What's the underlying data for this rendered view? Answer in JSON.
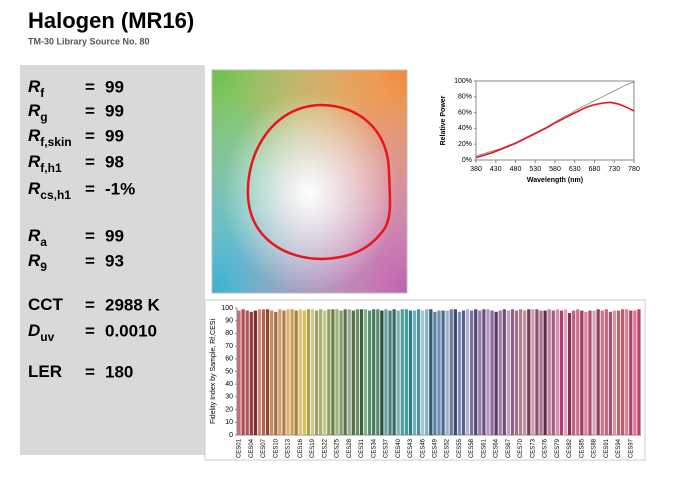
{
  "header": {
    "title": "Halogen (MR16)",
    "subtitle": "TM-30 Library Source No. 80"
  },
  "metrics": [
    {
      "symbol": "R",
      "subscript": "f",
      "sign": "=",
      "value": "99"
    },
    {
      "symbol": "R",
      "subscript": "g",
      "sign": "=",
      "value": "99"
    },
    {
      "symbol": "R",
      "subscript": "f,skin",
      "sign": "=",
      "value": "99"
    },
    {
      "symbol": "R",
      "subscript": "f,h1",
      "sign": "=",
      "value": "98"
    },
    {
      "symbol": "R",
      "subscript": "cs,h1",
      "sign": "=",
      "value": "-1%"
    },
    {
      "symbol": "R",
      "subscript": "a",
      "sign": "=",
      "value": "99"
    },
    {
      "symbol": "R",
      "subscript": "9",
      "sign": "=",
      "value": "93"
    },
    {
      "symbol": "CCT",
      "sign": "=",
      "value": "2988 K"
    },
    {
      "symbol": "D",
      "subscript": "uv",
      "sign": "=",
      "value": "0.0010"
    },
    {
      "symbol": "LER",
      "sign": "=",
      "value": "180"
    }
  ],
  "chart_data": [
    {
      "type": "bar",
      "y_label": "Fidelity Index by Sample, Rf,CESi",
      "categories": [
        "CES01",
        null,
        null,
        "CES04",
        null,
        null,
        "CES07",
        null,
        null,
        "CES10",
        null,
        null,
        "CES13",
        null,
        null,
        "CES16",
        null,
        null,
        "CES19",
        null,
        null,
        "CES22",
        null,
        null,
        "CES25",
        null,
        null,
        "CES28",
        null,
        null,
        "CES31",
        null,
        null,
        "CES34",
        null,
        null,
        "CES37",
        null,
        null,
        "CES40",
        null,
        null,
        "CES43",
        null,
        null,
        "CES46",
        null,
        null,
        "CES49",
        null,
        null,
        "CES52",
        null,
        null,
        "CES55",
        null,
        null,
        "CES58",
        null,
        null,
        "CES61",
        null,
        null,
        "CES64",
        null,
        null,
        "CES67",
        null,
        null,
        "CES70",
        null,
        null,
        "CES73",
        null,
        null,
        "CES76",
        null,
        null,
        "CES79",
        null,
        null,
        "CES82",
        null,
        null,
        "CES85",
        null,
        null,
        "CES88",
        null,
        null,
        "CES91",
        null,
        null,
        "CES94",
        null,
        null,
        "CES97",
        null,
        null
      ],
      "values": [
        98,
        99,
        98,
        97,
        98,
        99,
        99,
        99,
        98,
        97,
        99,
        98,
        99,
        99,
        98,
        99,
        98,
        99,
        99,
        98,
        99,
        98,
        99,
        99,
        99,
        98,
        99,
        99,
        98,
        99,
        99,
        99,
        98,
        99,
        99,
        98,
        99,
        98,
        99,
        98,
        99,
        99,
        98,
        98,
        99,
        98,
        99,
        99,
        97,
        98,
        98,
        98,
        99,
        99,
        97,
        98,
        99,
        98,
        99,
        98,
        99,
        99,
        98,
        97,
        98,
        99,
        98,
        99,
        98,
        99,
        98,
        99,
        99,
        99,
        98,
        98,
        99,
        98,
        99,
        98,
        99,
        96,
        98,
        99,
        98,
        97,
        98,
        98,
        99,
        98,
        99,
        97,
        98,
        98,
        99,
        99,
        98,
        98,
        99
      ],
      "colors": [
        "#c4707a",
        "#b84a4f",
        "#a85a5a",
        "#9b3a3a",
        "#7a3030",
        "#d08a7a",
        "#b5644a",
        "#8a4a30",
        "#c98a5a",
        "#a0704a",
        "#d4a070",
        "#b08050",
        "#e0b070",
        "#c8a050",
        "#a08040",
        "#e0c070",
        "#d0c060",
        "#b0a040",
        "#c8c8a0",
        "#a0a060",
        "#a8b070",
        "#c0c890",
        "#90a060",
        "#708040",
        "#a0b080",
        "#80a070",
        "#607050",
        "#90b090",
        "#50704a",
        "#6a9060",
        "#3a6040",
        "#80b090",
        "#5a9070",
        "#40805a",
        "#608a70",
        "#2a5040",
        "#70a0a0",
        "#4a8080",
        "#306a6a",
        "#80b0b0",
        "#5a9a9a",
        "#40a0a0",
        "#307a80",
        "#6ab0c0",
        "#4a90a0",
        "#a0c8d0",
        "#8ab0c0",
        "#305a70",
        "#5a80a0",
        "#7090b0",
        "#4a6a90",
        "#a0b0c8",
        "#6a7aa0",
        "#3a4a70",
        "#8090b8",
        "#5a6090",
        "#b0b0d0",
        "#7a70a0",
        "#504a70",
        "#9080b0",
        "#6a5080",
        "#b098c0",
        "#8a6a9a",
        "#5a3a6a",
        "#a080a8",
        "#70507a",
        "#c0a0c0",
        "#906080",
        "#a07090",
        "#b0808a",
        "#c090a0",
        "#704050",
        "#d0a0b0",
        "#905070",
        "#b07090",
        "#5a3040",
        "#c080a0",
        "#a06080",
        "#d890b0",
        "#b04070",
        "#e0a0c0",
        "#803050",
        "#c06080",
        "#d07090",
        "#a04060",
        "#e080a0",
        "#b05070",
        "#d0a8b8",
        "#904060",
        "#c07888",
        "#d06080",
        "#a05070",
        "#e09098",
        "#b06878",
        "#c85870",
        "#d88090",
        "#a84860",
        "#e070a0",
        "#c04060"
      ],
      "ylim": [
        0,
        100
      ],
      "yticks": [
        0,
        10,
        20,
        30,
        40,
        50,
        60,
        70,
        80,
        90,
        100
      ]
    },
    {
      "type": "line",
      "x_label": "Wavelength (nm)",
      "y_label": "Relative Power",
      "x": [
        380,
        400,
        420,
        440,
        460,
        480,
        500,
        520,
        540,
        560,
        580,
        600,
        620,
        640,
        660,
        680,
        700,
        720,
        740,
        760,
        780
      ],
      "series": [
        {
          "color": "#808080",
          "values": [
            5,
            8,
            11,
            14,
            18,
            22,
            27,
            32,
            37,
            42,
            48,
            54,
            59,
            65,
            70,
            75,
            80,
            85,
            90,
            95,
            99
          ]
        },
        {
          "color": "#e8161b",
          "values": [
            3,
            6,
            9,
            13,
            17,
            21,
            26,
            31,
            36,
            41,
            47,
            52,
            57,
            62,
            67,
            70,
            72,
            73,
            71,
            67,
            62
          ]
        }
      ],
      "xlim": [
        380,
        780
      ],
      "xticks": [
        380,
        430,
        480,
        530,
        580,
        630,
        680,
        730,
        780
      ],
      "ylim": [
        0,
        100
      ],
      "yticks": [
        {
          "value": 0,
          "label": "0%"
        },
        {
          "value": 20,
          "label": "20%"
        },
        {
          "value": 40,
          "label": "40%"
        },
        {
          "value": 60,
          "label": "60%"
        },
        {
          "value": 80,
          "label": "80%"
        },
        {
          "value": 100,
          "label": "100%"
        }
      ]
    }
  ]
}
